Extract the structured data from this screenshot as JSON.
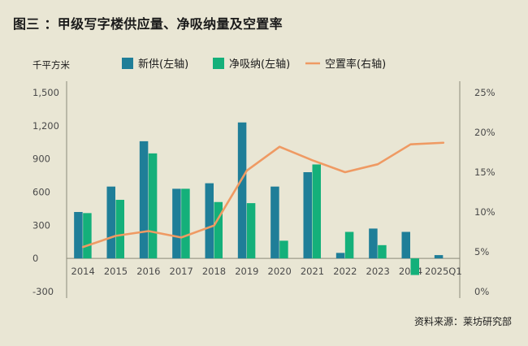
{
  "title": "图三 ：甲级写字楼供应量、净吸纳量及空置率",
  "source": "资料来源：莱坊研究部",
  "chart_data": {
    "type": "bar",
    "categories": [
      "2014",
      "2015",
      "2016",
      "2017",
      "2018",
      "2019",
      "2020",
      "2021",
      "2022",
      "2023",
      "2024",
      "2025Q1"
    ],
    "series": [
      {
        "name": "新供(左轴)",
        "axis": "left",
        "kind": "bar",
        "color": "#1f7e98",
        "values": [
          420,
          650,
          1060,
          630,
          680,
          1230,
          650,
          780,
          50,
          270,
          240,
          30
        ]
      },
      {
        "name": "净吸纳(左轴)",
        "axis": "left",
        "kind": "bar",
        "color": "#14b07a",
        "values": [
          410,
          530,
          950,
          630,
          510,
          500,
          160,
          850,
          240,
          120,
          -150,
          0
        ]
      },
      {
        "name": "空置率(右轴)",
        "axis": "right",
        "kind": "line",
        "color": "#ef9a63",
        "values": [
          5.6,
          7.0,
          7.6,
          6.8,
          8.3,
          15.2,
          18.2,
          16.5,
          15.0,
          16.0,
          18.5,
          18.7
        ]
      }
    ],
    "left_axis": {
      "unit": "千平方米",
      "ylim": [
        -300,
        1500
      ],
      "ticks": [
        -300,
        0,
        300,
        600,
        900,
        1200,
        1500
      ],
      "tick_labels": [
        "-300",
        "0",
        "300",
        "600",
        "900",
        "1,200",
        "1,500"
      ]
    },
    "right_axis": {
      "ylim": [
        0,
        25
      ],
      "ticks": [
        0,
        5,
        10,
        15,
        20,
        25
      ],
      "tick_labels": [
        "0%",
        "5%",
        "10%",
        "15%",
        "20%",
        "25%"
      ]
    },
    "legend_position": "top"
  }
}
